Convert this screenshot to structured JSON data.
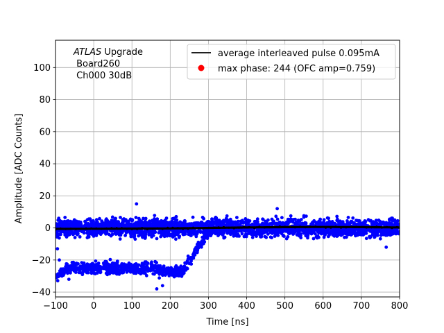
{
  "chart_data": {
    "type": "scatter",
    "xlabel": "Time [ns]",
    "ylabel": "Amplitude [ADC Counts]",
    "xlim": [
      -100,
      800
    ],
    "ylim": [
      -43,
      117
    ],
    "xticks": [
      -100,
      0,
      100,
      200,
      300,
      400,
      500,
      600,
      700,
      800
    ],
    "xtick_labels": [
      "−100",
      "0",
      "100",
      "200",
      "300",
      "400",
      "500",
      "600",
      "700",
      "800"
    ],
    "yticks": [
      -40,
      -20,
      0,
      20,
      40,
      60,
      80,
      100
    ],
    "ytick_labels": [
      "−40",
      "−20",
      "0",
      "20",
      "40",
      "60",
      "80",
      "100"
    ],
    "grid": true,
    "legend_position": "top-right",
    "annotation": {
      "line1_italic": "ATLAS",
      "line1_rest": " Upgrade",
      "line2": " Board260",
      "line3": " Ch000 30dB"
    },
    "series": [
      {
        "name": "average interleaved pulse 0.095mA",
        "kind": "line",
        "color": "#000000",
        "points": [
          [
            -100,
            -0.6
          ],
          [
            0,
            -0.5
          ],
          [
            100,
            -0.4
          ],
          [
            200,
            -0.3
          ],
          [
            300,
            0.0
          ],
          [
            400,
            0.3
          ],
          [
            500,
            0.5
          ],
          [
            600,
            0.6
          ],
          [
            700,
            0.5
          ],
          [
            800,
            0.3
          ]
        ]
      },
      {
        "name": "max phase: 244 (OFC amp=0.759)",
        "kind": "marker",
        "color": "#ff0000",
        "points": []
      },
      {
        "name": "",
        "kind": "scatter",
        "color": "#0000ff",
        "description_bands": [
          {
            "x_range": [
              -100,
              800
            ],
            "y_center": 0,
            "y_spread": 7
          },
          {
            "x_range": [
              -100,
              300
            ],
            "y_center": -25,
            "y_spread": 5
          }
        ],
        "outliers": [
          [
            112,
            15
          ],
          [
            -95,
            -13
          ],
          [
            -90,
            -20
          ],
          [
            -65,
            -32
          ],
          [
            165,
            -38
          ],
          [
            180,
            -36
          ],
          [
            765,
            -12
          ],
          [
            480,
            12
          ]
        ]
      }
    ]
  }
}
